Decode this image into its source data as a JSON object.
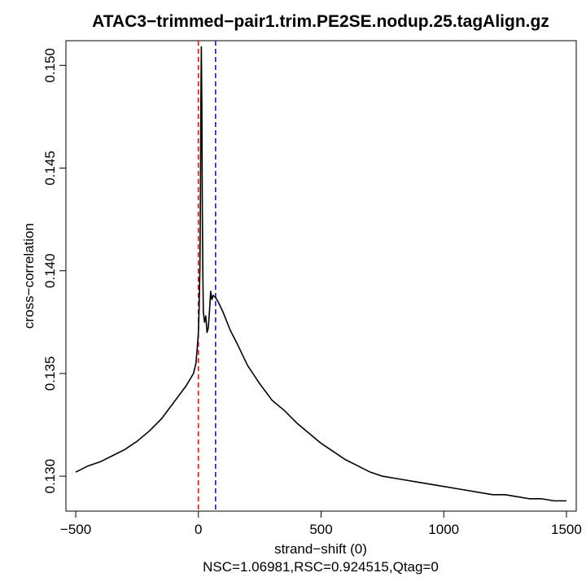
{
  "chart_data": {
    "type": "line",
    "title": "ATAC3−trimmed−pair1.trim.PE2SE.nodup.25.tagAlign.gz",
    "xlabel": "strand−shift (0)",
    "subtitle": "NSC=1.06981,RSC=0.924515,Qtag=0",
    "ylabel": "cross−correlation",
    "xlim": [
      -540,
      1540
    ],
    "ylim": [
      0.1283,
      0.1512
    ],
    "x_ticks": [
      {
        "value": -500,
        "label": "−500"
      },
      {
        "value": 0,
        "label": "0"
      },
      {
        "value": 500,
        "label": "500"
      },
      {
        "value": 1000,
        "label": "1000"
      },
      {
        "value": 1500,
        "label": "1500"
      }
    ],
    "y_ticks": [
      {
        "value": 0.13,
        "label": "0.130"
      },
      {
        "value": 0.135,
        "label": "0.135"
      },
      {
        "value": 0.14,
        "label": "0.140"
      },
      {
        "value": 0.145,
        "label": "0.145"
      },
      {
        "value": 0.15,
        "label": "0.150"
      }
    ],
    "vlines": [
      {
        "x": 0,
        "color": "#ff0000",
        "style": "dashed"
      },
      {
        "x": 70,
        "color": "#0000ff",
        "style": "dashed"
      }
    ],
    "series": [
      {
        "color": "#000000",
        "points": [
          [
            -500,
            0.1302
          ],
          [
            -450,
            0.1305
          ],
          [
            -400,
            0.1307
          ],
          [
            -350,
            0.131
          ],
          [
            -300,
            0.1313
          ],
          [
            -250,
            0.1317
          ],
          [
            -200,
            0.1322
          ],
          [
            -150,
            0.1328
          ],
          [
            -100,
            0.1336
          ],
          [
            -50,
            0.1344
          ],
          [
            -20,
            0.135
          ],
          [
            -10,
            0.1355
          ],
          [
            -5,
            0.1362
          ],
          [
            0,
            0.137
          ],
          [
            3,
            0.1382
          ],
          [
            6,
            0.14
          ],
          [
            8,
            0.143
          ],
          [
            10,
            0.148
          ],
          [
            12,
            0.1509
          ],
          [
            14,
            0.148
          ],
          [
            16,
            0.143
          ],
          [
            18,
            0.14
          ],
          [
            20,
            0.138
          ],
          [
            25,
            0.1375
          ],
          [
            30,
            0.1378
          ],
          [
            35,
            0.137
          ],
          [
            40,
            0.1372
          ],
          [
            45,
            0.138
          ],
          [
            50,
            0.139
          ],
          [
            55,
            0.1386
          ],
          [
            60,
            0.1388
          ],
          [
            70,
            0.1387
          ],
          [
            80,
            0.1385
          ],
          [
            100,
            0.138
          ],
          [
            130,
            0.1371
          ],
          [
            160,
            0.1364
          ],
          [
            200,
            0.1354
          ],
          [
            250,
            0.1345
          ],
          [
            300,
            0.1337
          ],
          [
            350,
            0.1332
          ],
          [
            400,
            0.1326
          ],
          [
            450,
            0.1321
          ],
          [
            500,
            0.1316
          ],
          [
            550,
            0.1312
          ],
          [
            600,
            0.1308
          ],
          [
            650,
            0.1305
          ],
          [
            700,
            0.1302
          ],
          [
            750,
            0.13
          ],
          [
            800,
            0.1299
          ],
          [
            850,
            0.1298
          ],
          [
            900,
            0.1297
          ],
          [
            950,
            0.1296
          ],
          [
            1000,
            0.1295
          ],
          [
            1050,
            0.1294
          ],
          [
            1100,
            0.1293
          ],
          [
            1150,
            0.1292
          ],
          [
            1200,
            0.1291
          ],
          [
            1250,
            0.1291
          ],
          [
            1300,
            0.129
          ],
          [
            1350,
            0.1289
          ],
          [
            1400,
            0.1289
          ],
          [
            1450,
            0.1288
          ],
          [
            1500,
            0.1288
          ]
        ]
      }
    ]
  }
}
